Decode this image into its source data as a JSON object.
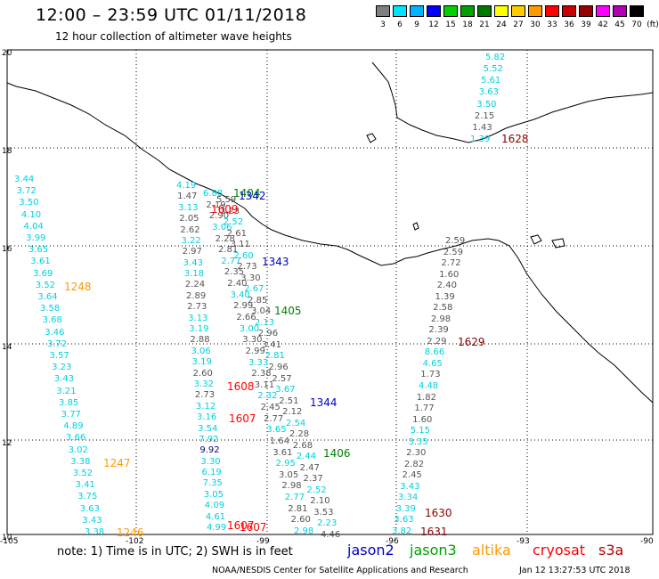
{
  "header": {
    "title": "12:00 – 23:59 UTC 01/11/2018",
    "subtitle": "12 hour collection of altimeter wave heights"
  },
  "color_scale": {
    "unit": "(ft)",
    "colors": [
      "#7f7f7f",
      "#00e5ff",
      "#00b4ff",
      "#0000ff",
      "#00d200",
      "#00a000",
      "#007800",
      "#ffff00",
      "#ffcc00",
      "#ff9900",
      "#ff0000",
      "#c80000",
      "#960000",
      "#ff00ff",
      "#b400b4",
      "#000000"
    ],
    "labels": [
      "3",
      "6",
      "9",
      "12",
      "15",
      "18",
      "21",
      "24",
      "27",
      "30",
      "33",
      "36",
      "39",
      "42",
      "45",
      "70"
    ]
  },
  "axes": {
    "lat_labels": [
      "20",
      "18",
      "16",
      "14",
      "12",
      "10"
    ],
    "lon_labels": [
      "-105",
      "-102",
      "-99",
      "-96",
      "-93",
      "-90"
    ]
  },
  "tracks": [
    {
      "id": "t1248",
      "label": "1248",
      "label_color": "#ff9900",
      "values": [
        {
          "v": "3.44",
          "c": "cyan"
        },
        {
          "v": "3.72",
          "c": "cyan"
        },
        {
          "v": "3.50",
          "c": "cyan"
        },
        {
          "v": "4.10",
          "c": "cyan"
        },
        {
          "v": "4.04",
          "c": "cyan"
        },
        {
          "v": "3.99",
          "c": "cyan"
        },
        {
          "v": "3.65",
          "c": "cyan"
        },
        {
          "v": "3.61",
          "c": "cyan"
        },
        {
          "v": "3.69",
          "c": "cyan"
        },
        {
          "v": "3.52",
          "c": "cyan"
        },
        {
          "v": "3.64",
          "c": "cyan"
        },
        {
          "v": "3.58",
          "c": "cyan"
        },
        {
          "v": "3.68",
          "c": "cyan"
        },
        {
          "v": "3.46",
          "c": "cyan"
        },
        {
          "v": "3.72",
          "c": "cyan"
        },
        {
          "v": "3.57",
          "c": "cyan"
        },
        {
          "v": "3.23",
          "c": "cyan"
        },
        {
          "v": "3.43",
          "c": "cyan"
        },
        {
          "v": "3.21",
          "c": "cyan"
        },
        {
          "v": "3.85",
          "c": "cyan"
        },
        {
          "v": "3.77",
          "c": "cyan"
        },
        {
          "v": "4.89",
          "c": "cyan"
        },
        {
          "v": "3.66",
          "c": "cyan"
        },
        {
          "v": "3.02",
          "c": "cyan"
        },
        {
          "v": "3.38",
          "c": "cyan"
        },
        {
          "v": "3.52",
          "c": "cyan"
        },
        {
          "v": "3.41",
          "c": "cyan"
        },
        {
          "v": "3.75",
          "c": "cyan"
        },
        {
          "v": "3.63",
          "c": "cyan"
        },
        {
          "v": "3.43",
          "c": "cyan"
        },
        {
          "v": "3.38",
          "c": "cyan"
        }
      ]
    },
    {
      "id": "t1607",
      "label": "1607",
      "label_color": "#ff0000",
      "values": [
        {
          "v": "4.19",
          "c": "cyan"
        },
        {
          "v": "1.47",
          "c": "gray"
        },
        {
          "v": "3.13",
          "c": "cyan"
        },
        {
          "v": "2.05",
          "c": "gray"
        },
        {
          "v": "2.62",
          "c": "gray"
        },
        {
          "v": "3.22",
          "c": "cyan"
        },
        {
          "v": "2.97",
          "c": "gray"
        },
        {
          "v": "3.43",
          "c": "cyan"
        },
        {
          "v": "3.18",
          "c": "cyan"
        },
        {
          "v": "2.24",
          "c": "gray"
        },
        {
          "v": "2.89",
          "c": "gray"
        },
        {
          "v": "2.73",
          "c": "gray"
        },
        {
          "v": "3.13",
          "c": "cyan"
        },
        {
          "v": "3.19",
          "c": "cyan"
        },
        {
          "v": "2.88",
          "c": "gray"
        },
        {
          "v": "3.06",
          "c": "cyan"
        },
        {
          "v": "3.19",
          "c": "cyan"
        },
        {
          "v": "2.60",
          "c": "gray"
        },
        {
          "v": "3.32",
          "c": "cyan"
        },
        {
          "v": "2.73",
          "c": "gray"
        },
        {
          "v": "3.12",
          "c": "cyan"
        },
        {
          "v": "3.16",
          "c": "cyan"
        },
        {
          "v": "3.54",
          "c": "cyan"
        },
        {
          "v": "7.92",
          "c": "cyan"
        },
        {
          "v": "9.92",
          "c": "navy"
        },
        {
          "v": "3.30",
          "c": "cyan"
        },
        {
          "v": "6.19",
          "c": "cyan"
        },
        {
          "v": "7.35",
          "c": "cyan"
        },
        {
          "v": "3.05",
          "c": "cyan"
        },
        {
          "v": "4.09",
          "c": "cyan"
        },
        {
          "v": "4.61",
          "c": "cyan"
        },
        {
          "v": "4.99",
          "c": "cyan"
        }
      ]
    },
    {
      "id": "t1629",
      "label": "1629",
      "label_color": "#8b0000",
      "values": [
        {
          "v": "2.59",
          "c": "gray"
        },
        {
          "v": "2.59",
          "c": "gray"
        },
        {
          "v": "2.72",
          "c": "gray"
        },
        {
          "v": "1.60",
          "c": "gray"
        },
        {
          "v": "2.40",
          "c": "gray"
        },
        {
          "v": "1.39",
          "c": "gray"
        },
        {
          "v": "2.58",
          "c": "gray"
        },
        {
          "v": "2.98",
          "c": "gray"
        },
        {
          "v": "2.39",
          "c": "gray"
        },
        {
          "v": "2.29",
          "c": "gray"
        },
        {
          "v": "8.66",
          "c": "cyan"
        },
        {
          "v": "4.65",
          "c": "cyan"
        },
        {
          "v": "1.73",
          "c": "gray"
        },
        {
          "v": "4.48",
          "c": "cyan"
        },
        {
          "v": "1.82",
          "c": "gray"
        },
        {
          "v": "1.77",
          "c": "gray"
        },
        {
          "v": "1.60",
          "c": "gray"
        },
        {
          "v": "5.15",
          "c": "cyan"
        },
        {
          "v": "3.35",
          "c": "cyan"
        },
        {
          "v": "2.30",
          "c": "gray"
        },
        {
          "v": "2.82",
          "c": "gray"
        },
        {
          "v": "2.45",
          "c": "gray"
        },
        {
          "v": "3.43",
          "c": "cyan"
        },
        {
          "v": "3.34",
          "c": "cyan"
        },
        {
          "v": "3.39",
          "c": "cyan"
        },
        {
          "v": "3.63",
          "c": "cyan"
        },
        {
          "v": "3.82",
          "c": "cyan"
        }
      ]
    },
    {
      "id": "t1628",
      "label": "1628",
      "label_color": "#8b0000",
      "values": [
        {
          "v": "5.82",
          "c": "cyan"
        },
        {
          "v": "5.52",
          "c": "cyan"
        },
        {
          "v": "5.61",
          "c": "cyan"
        },
        {
          "v": "3.63",
          "c": "cyan"
        },
        {
          "v": "3.50",
          "c": "cyan"
        },
        {
          "v": "2.15",
          "c": "gray"
        },
        {
          "v": "1.43",
          "c": "gray"
        },
        {
          "v": "1.39",
          "c": "cyan"
        }
      ]
    }
  ],
  "dense_tracks": [
    {
      "id": "c1",
      "values": [
        "6.88",
        "2.19",
        "2.90",
        "3.06",
        "2.28",
        "2.81",
        "2.77",
        "2.35",
        "2.40",
        "3.40",
        "2.99",
        "2.66",
        "3.00",
        "3.30",
        "2.99",
        "3.33",
        "2.38",
        "3.11",
        "2.32",
        "2.45",
        "2.77",
        "3.65",
        "1.64",
        "3.61",
        "2.95",
        "3.05",
        "2.98",
        "2.77",
        "2.81",
        "2.60",
        "2.98"
      ]
    },
    {
      "id": "c2",
      "values": [
        "5.59",
        "3.23",
        "2.52",
        "2.61",
        "3.11",
        "2.60",
        "2.73",
        "3.30",
        "2.67",
        "2.85",
        "3.04",
        "2.13",
        "2.96",
        "3.41",
        "2.81",
        "2.96",
        "2.57",
        "3.67",
        "2.51",
        "2.12",
        "2.54",
        "2.28",
        "2.68",
        "2.44",
        "2.47",
        "2.37",
        "2.52",
        "2.10",
        "3.53",
        "2.23",
        "4.46"
      ]
    }
  ],
  "track_labels": [
    {
      "id": "L1404",
      "text": "1404",
      "color": "#008000"
    },
    {
      "id": "L1342",
      "text": "1342",
      "color": "#0000cc"
    },
    {
      "id": "L1609",
      "text": "1609",
      "color": "#ff0000"
    },
    {
      "id": "L1343",
      "text": "1343",
      "color": "#0000cc"
    },
    {
      "id": "L1405",
      "text": "1405",
      "color": "#008000"
    },
    {
      "id": "L1608",
      "text": "1608",
      "color": "#ff0000"
    },
    {
      "id": "L1344",
      "text": "1344",
      "color": "#0000cc"
    },
    {
      "id": "L1607b",
      "text": "1607",
      "color": "#ff0000"
    },
    {
      "id": "L1406",
      "text": "1406",
      "color": "#008000"
    },
    {
      "id": "L1247",
      "text": "1247",
      "color": "#ff9900"
    },
    {
      "id": "L1607c",
      "text": "1607",
      "color": "#ff0000"
    },
    {
      "id": "L1246",
      "text": "1246",
      "color": "#ff9900"
    },
    {
      "id": "L1630",
      "text": "1630",
      "color": "#8b0000"
    },
    {
      "id": "L1631",
      "text": "1631",
      "color": "#8b0000"
    }
  ],
  "footer": {
    "note": "note: 1) Time is in UTC; 2) SWH is in feet",
    "legend": [
      {
        "name": "jason2",
        "color": "#0000cc"
      },
      {
        "name": "jason3",
        "color": "#00a000"
      },
      {
        "name": "altika",
        "color": "#ff9900"
      },
      {
        "name": "cryosat",
        "color": "#ff0000"
      },
      {
        "name": "s3a",
        "color": "#b40000"
      }
    ],
    "credit": "NOAA/NESDIS Center for Satellite Applications and Research",
    "stamp": "Jan 12 13:27:53 UTC 2018"
  }
}
